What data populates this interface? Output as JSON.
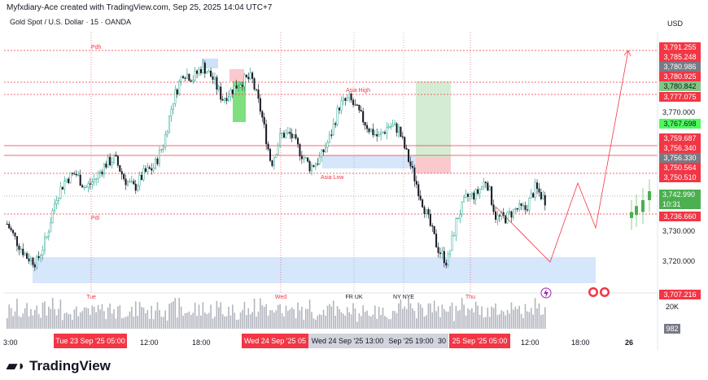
{
  "header": {
    "credit": "Myfxdiary-Ace created with TradingView.com, Sep 25, 2025 14:04 UTC+7",
    "symbol": "Gold Spot / U.S. Dollar · 15 · OANDA",
    "currency": "USD"
  },
  "colors": {
    "up": "#089981",
    "down": "#f23645",
    "bull_label": "#4caf50",
    "bear_label": "#f23645",
    "grey_label": "#787b86",
    "zone_blue": "#d6e6fb"
  },
  "chart_data": {
    "type": "candlestick",
    "symbol": "XAUUSD",
    "interval": "15",
    "ylim": [
      3707,
      3795
    ],
    "y_ticks": [
      "3,770.000",
      "3,730.000",
      "3,720.000"
    ],
    "x_ticks": [
      "3:00",
      "Tue 23 Sep '25  05:00",
      "12:00",
      "18:00",
      "Wed 24 Sep '25  05",
      "Wed 24 Sep '25  13:00",
      "Sep '25  19:00",
      "30",
      "25 Sep '25  05:00",
      "12:00",
      "18:00",
      "26"
    ],
    "day_labels": [
      "Tue",
      "Wed",
      "Thu"
    ],
    "session_labels": [
      "FR UK",
      "NY NYE"
    ],
    "close_path": [
      3733,
      3727,
      3722,
      3720,
      3728,
      3742,
      3748,
      3750,
      3745,
      3748,
      3753,
      3755,
      3748,
      3745,
      3750,
      3752,
      3760,
      3775,
      3784,
      3782,
      3786,
      3782,
      3775,
      3778,
      3781,
      3782,
      3770,
      3753,
      3763,
      3763,
      3757,
      3752,
      3755,
      3762,
      3773,
      3775,
      3770,
      3765,
      3762,
      3766,
      3765,
      3755,
      3745,
      3735,
      3725,
      3720,
      3735,
      3742,
      3743,
      3748,
      3735,
      3735,
      3738,
      3738,
      3745,
      3741
    ],
    "annotations": [
      "Pdh",
      "Pdl",
      "Asia High",
      "Asia Low"
    ],
    "price_labels": [
      {
        "v": "3,791.255",
        "c": "red"
      },
      {
        "v": "3,785.248",
        "c": "red"
      },
      {
        "v": "3,780.986",
        "c": "grey"
      },
      {
        "v": "3,780.925",
        "c": "red"
      },
      {
        "v": "3,780.842",
        "c": "lgreen"
      },
      {
        "v": "3,777.075",
        "c": "red"
      },
      {
        "v": "3,767.698",
        "c": "bgreen"
      },
      {
        "v": "3,759.687",
        "c": "red"
      },
      {
        "v": "3,756.340",
        "c": "red"
      },
      {
        "v": "3,756.330",
        "c": "grey"
      },
      {
        "v": "3,750.564",
        "c": "red"
      },
      {
        "v": "3,750.510",
        "c": "red"
      },
      {
        "v": "3,736.660",
        "c": "red"
      },
      {
        "v": "3,707.216",
        "c": "red"
      }
    ],
    "last_price": "3,742.990",
    "countdown": "10:31",
    "volume_label": "20K",
    "volume_last": "982"
  },
  "footer": {
    "logo": "TradingView"
  }
}
